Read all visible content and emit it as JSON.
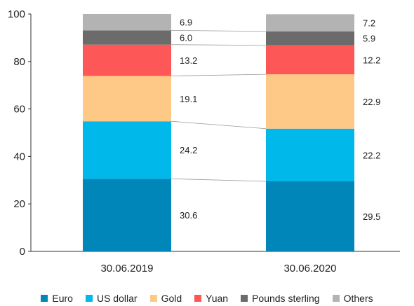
{
  "chart_data": {
    "type": "bar",
    "stacked": true,
    "categories": [
      "30.06.2019",
      "30.06.2020"
    ],
    "ylim": [
      0,
      100
    ],
    "yticks": [
      "0",
      "20",
      "40",
      "60",
      "80",
      "100"
    ],
    "legend_position": "bottom",
    "grid": false,
    "series": [
      {
        "name": "Euro",
        "color": "#0086b8",
        "values": [
          30.6,
          29.5
        ],
        "labels": [
          "30.6",
          "29.5"
        ]
      },
      {
        "name": "US dollar",
        "color": "#00b9ea",
        "values": [
          24.2,
          22.2
        ],
        "labels": [
          "24.2",
          "22.2"
        ]
      },
      {
        "name": "Gold",
        "color": "#fec887",
        "values": [
          19.1,
          22.9
        ],
        "labels": [
          "19.1",
          "22.9"
        ]
      },
      {
        "name": "Yuan",
        "color": "#fe5757",
        "values": [
          13.2,
          12.2
        ],
        "labels": [
          "13.2",
          "12.2"
        ]
      },
      {
        "name": "Pounds sterling",
        "color": "#6b6b6b",
        "values": [
          6.0,
          5.9
        ],
        "labels": [
          "6.0",
          "5.9"
        ]
      },
      {
        "name": "Others",
        "color": "#b3b3b3",
        "values": [
          6.9,
          7.2
        ],
        "labels": [
          "6.9",
          "7.2"
        ]
      }
    ]
  }
}
